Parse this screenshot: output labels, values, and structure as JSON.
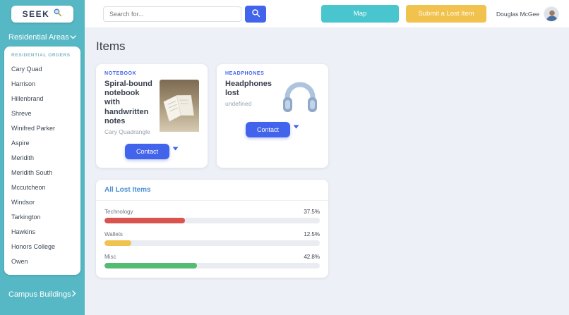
{
  "theme": {
    "sidebar_teal": "#57b8c5",
    "primary_blue": "#4263eb",
    "accent_yellow": "#f1c24d",
    "background": "#eef0f7"
  },
  "header": {
    "logo_text": "SEEK",
    "search": {
      "placeholder": "Search for..."
    },
    "map_button_label": "Map",
    "submit_button_label": "Submit a Lost Item",
    "user_name": "Douglas McGee"
  },
  "sidebar": {
    "residential_section_label": "Residential Areas",
    "residential_group_header": "RESIDENTIAL ORDERS",
    "items": [
      "Cary Quad",
      "Harrison",
      "Hillenbrand",
      "Shreve",
      "Winifred Parker",
      "Aspire",
      "Meridith",
      "Meridith South",
      "Mccutcheon",
      "Windsor",
      "Tarkington",
      "Hawkins",
      "Honors College",
      "Owen"
    ],
    "campus_section_label": "Campus Buildings"
  },
  "main": {
    "page_title": "Items",
    "cards": [
      {
        "category": "NOTEBOOK",
        "title": "Spiral-bound notebook with handwritten notes",
        "location": "Cary Quadrangle",
        "contact_label": "Contact"
      },
      {
        "category": "HEADPHONES",
        "title": "Headphones lost",
        "location": "undefined",
        "contact_label": "Contact"
      }
    ]
  },
  "chart_data": {
    "type": "bar",
    "orientation": "horizontal",
    "title": "All Lost Items",
    "categories": [
      "Technology",
      "Wallets",
      "Misc"
    ],
    "values": [
      37.5,
      12.5,
      42.8
    ],
    "value_labels": [
      "37.5%",
      "12.5%",
      "42.8%"
    ],
    "colors": [
      "#d9534f",
      "#f0c24e",
      "#54bb72"
    ],
    "xlim": [
      0,
      100
    ],
    "grid": false,
    "legend": false
  }
}
